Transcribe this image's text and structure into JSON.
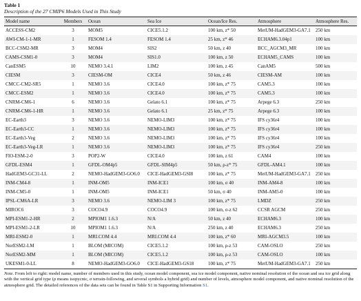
{
  "title": "Table 1",
  "caption": "Description of the 27 CMIP6 Models Used in This Study",
  "table": {
    "header": [
      "Model name",
      "Members",
      "Ocean",
      "Sea Ice",
      "Ocean/Ice Res.",
      "Atmosphere",
      "Atmosphere Res."
    ],
    "rows": [
      [
        "ACCESS-CM2",
        3,
        "MOM5",
        "CICE5.1.2",
        "100 km, z* 50",
        "MetUM-HadGEM3-GA7.1",
        "250 km"
      ],
      [
        "AWI-CM-1-1-MR",
        1,
        "FESOM 1.4",
        "FESOM 1.4",
        "25 km, z* 46",
        "ECHAM6.3.04p1",
        "100 km"
      ],
      [
        "BCC-CSM2-MR",
        3,
        "MOM4",
        "SIS2",
        "50 km, z 40",
        "BCC_AGCM3_MR",
        "100 km"
      ],
      [
        "CAMS-CSM1-0",
        3,
        "MOM4",
        "SIS1.0",
        "100 km, z 50",
        "ECHAM5_CAMS",
        "100 km"
      ],
      [
        "CanESM5",
        10,
        "NEMO 3.4.1",
        "LIM2",
        "100 km, z 45",
        "CanAM5",
        "500 km"
      ],
      [
        "CIESM",
        3,
        "CIESM-OM",
        "CICE4",
        "50 km, z 46",
        "CIESM-AM",
        "100 km"
      ],
      [
        "CMCC-CM2-SR5",
        1,
        "NEMO 3.6",
        "CICE4.0",
        "100 km, z* 75",
        "CAM5.3",
        "100 km"
      ],
      [
        "CMCC-ESM2",
        1,
        "NEMO 3.6",
        "CICE4.0",
        "100 km, z* 75",
        "CAM5.3",
        "100 km"
      ],
      [
        "CNRM-CM6-1",
        6,
        "NEMO 3.6",
        "Gelato 6.1",
        "100 km, z* 75",
        "Arpege 6.3",
        "250 km"
      ],
      [
        "CNRM-CM6-1-HR",
        1,
        "NEMO 3.6",
        "Gelato 6.1",
        "25 km, z* 75",
        "Arpege 6.3",
        "100 km"
      ],
      [
        "EC-Earth3",
        3,
        "NEMO 3.6",
        "NEMO-LIM3",
        "100 km, z* 75",
        "IFS cy36r4",
        "100 km"
      ],
      [
        "EC-Earth3-CC",
        1,
        "NEMO 3.6",
        "NEMO-LIM3",
        "100 km, z* 75",
        "IFS cy36r4",
        "100 km"
      ],
      [
        "EC-Earth3-Veg",
        2,
        "NEMO 3.6",
        "NEMO-LIM3",
        "100 km, z* 75",
        "IFS cy36r4",
        "100 km"
      ],
      [
        "EC-Earth3-Veg-LR",
        1,
        "NEMO 3.6",
        "NEMO-LIM3",
        "100 km, z* 75",
        "IFS cy36r4",
        "250 km"
      ],
      [
        "FIO-ESM-2-0",
        3,
        "POP2-W",
        "CICE4.0",
        "100 km, z 61",
        "CAM4",
        "100 km"
      ],
      [
        "GFDL-ESM4",
        1,
        "GFDL-OM4p5",
        "GFDL-SIM4p5",
        "50 km, ρ-z* 75",
        "GFDL-AM4.1",
        "100 km"
      ],
      [
        "HadGEM3-GC31-LL",
        2,
        "NEMO-HadGEM3-GO6.0",
        "CICE-HadGEM3-GSI8",
        "100 km, z* 75",
        "MetUM-HadGEM3-GA7.1",
        "250 km"
      ],
      [
        "INM-CM4-8",
        1,
        "INM-OM5",
        "INM-ICE1",
        "100 km, σ 40",
        "INM-AM4-8",
        "100 km"
      ],
      [
        "INM-CM5-0",
        1,
        "INM-OM5",
        "INM-ICE1",
        "50 km, σ 40",
        "INM-AM5-0",
        "100 km"
      ],
      [
        "IPSL-CM6A-LR",
        3,
        "NEMO 3.6",
        "NEMO-LIM 3",
        "100 km, z* 75",
        "LMDZ",
        "250 km"
      ],
      [
        "MIROC6",
        3,
        "COCO4.9",
        "COCO4.9",
        "100 km, σ-z 62",
        "CCSR AGCM",
        "250 km"
      ],
      [
        "MPI-ESM1-2-HR",
        2,
        "MPIOM1 1.6.3",
        "N/A",
        "50 km, z 40",
        "ECHAM6.3",
        "100 km"
      ],
      [
        "MPI-ESM1-2-LR",
        10,
        "MPIOM1 1.6.3",
        "N/A",
        "250 km, z 40",
        "ECHAM6.3",
        "250 km"
      ],
      [
        "MRI-ESM2-0",
        1,
        "MRI.COM 4.4",
        "MRI.COM 4.4",
        "100 km, z* 60",
        "MRI-AGCM3.5",
        "100 km"
      ],
      [
        "NorESM2-LM",
        1,
        "BLOM (MICOM)",
        "CICE5.1.2",
        "100 km, ρ-z 53",
        "CAM-OSLO",
        "250 km"
      ],
      [
        "NorESM2-MM",
        1,
        "BLOM (MICOM)",
        "CICE5.1.2",
        "100 km, ρ-z 53",
        "CAM-OSLO",
        "100 km"
      ],
      [
        "UKESM1-0-LL",
        8,
        "NEMO-HadGEM3-GO6.0",
        "CICE-HadGEM3-GS18",
        "100 km, z* 75",
        "MetUM-HadGEM3-GA7.1",
        "250 km"
      ]
    ]
  },
  "note": {
    "label": "Note.",
    "text": "From left to right: model name, number of members used in this study, ocean model component, sea ice model component, native nominal resolution of the ocean and sea ice grid along with the vertical grid type (ρ means isopycnic, σ terrain-following, and several symbols a hybrid grid) and number of levels, atmosphere model component, and native nominal resolution of the atmosphere grid. The detailed references of the data sets can be found in Table S1 in Supporting Information",
    "link": "S1",
    "end": "."
  }
}
